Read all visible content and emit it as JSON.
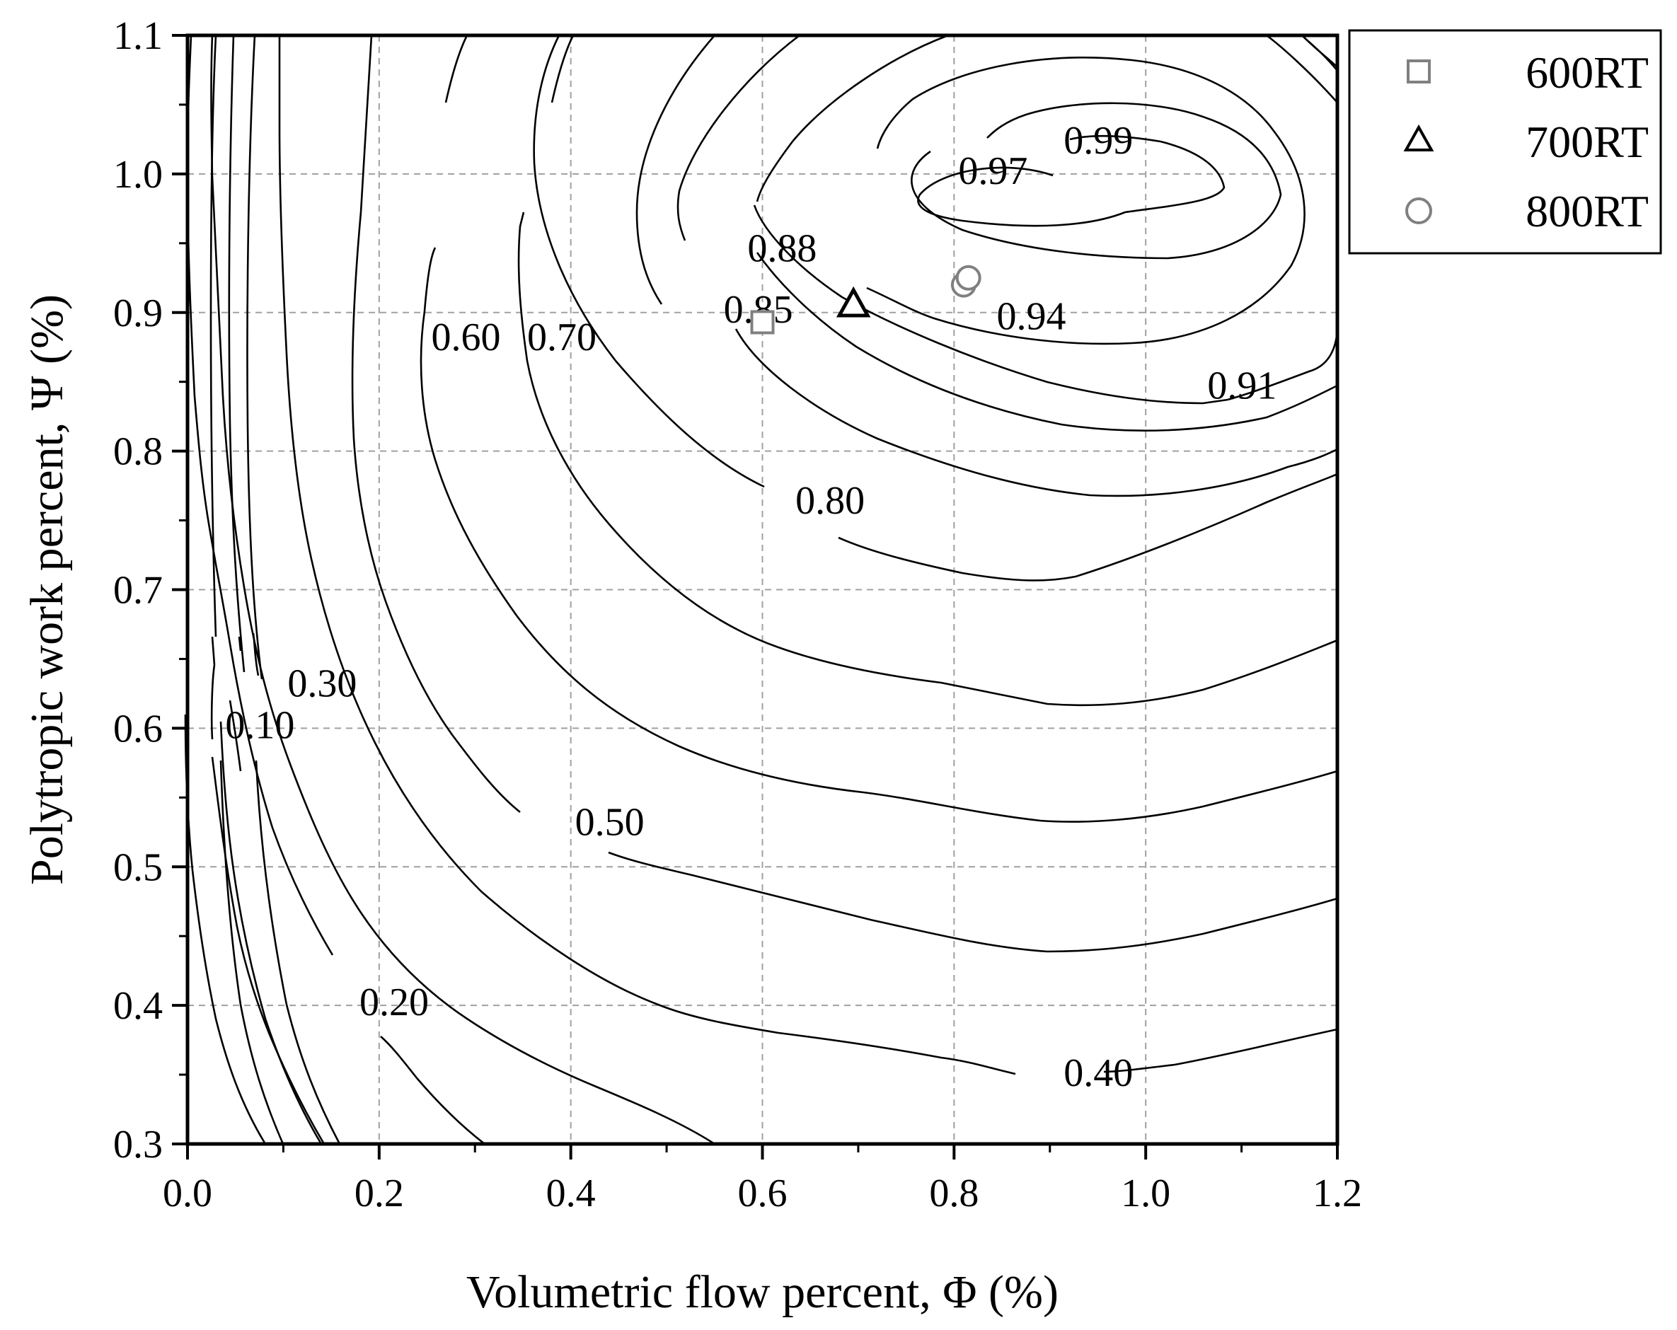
{
  "chart_data": {
    "type": "contour",
    "xlabel": "Volumetric flow percent, Φ (%)",
    "ylabel": "Polytropic work percent, Ψ (%)",
    "xlim": [
      0.0,
      1.2
    ],
    "ylim": [
      0.3,
      1.1
    ],
    "x_ticks": [
      "0.0",
      "0.2",
      "0.4",
      "0.6",
      "0.8",
      "1.0",
      "1.2"
    ],
    "y_ticks": [
      "0.3",
      "0.4",
      "0.5",
      "0.6",
      "0.7",
      "0.8",
      "0.9",
      "1.0",
      "1.1"
    ],
    "grid": true,
    "contour_levels": [
      {
        "label": "0.99",
        "x": 0.91,
        "y": 1.025
      },
      {
        "label": "0.97",
        "x": 0.8,
        "y": 1.003
      },
      {
        "label": "0.94",
        "x": 0.84,
        "y": 0.898
      },
      {
        "label": "0.91",
        "x": 1.06,
        "y": 0.848
      },
      {
        "label": "0.88",
        "x": 0.58,
        "y": 0.947
      },
      {
        "label": "0.85",
        "x": 0.555,
        "y": 0.903
      },
      {
        "label": "0.80",
        "x": 0.63,
        "y": 0.765
      },
      {
        "label": "0.70",
        "x": 0.35,
        "y": 0.883
      },
      {
        "label": "0.60",
        "x": 0.25,
        "y": 0.883
      },
      {
        "label": "0.50",
        "x": 0.4,
        "y": 0.533
      },
      {
        "label": "0.40",
        "x": 0.91,
        "y": 0.352
      },
      {
        "label": "0.30",
        "x": 0.1,
        "y": 0.633
      },
      {
        "label": "0.20",
        "x": 0.175,
        "y": 0.403
      },
      {
        "label": "0.10",
        "x": 0.035,
        "y": 0.603
      }
    ],
    "series": [
      {
        "name": "600RT",
        "marker": "square",
        "color": "#808080",
        "points": [
          [
            0.6,
            0.893
          ]
        ]
      },
      {
        "name": "700RT",
        "marker": "triangle",
        "color": "#000000",
        "points": [
          [
            0.695,
            0.905
          ]
        ]
      },
      {
        "name": "800RT",
        "marker": "circle",
        "color": "#808080",
        "points": [
          [
            0.81,
            0.92
          ],
          [
            0.815,
            0.925
          ]
        ]
      }
    ],
    "legend": {
      "position": "outside-top-right",
      "entries": [
        "600RT",
        "700RT",
        "800RT"
      ]
    }
  }
}
